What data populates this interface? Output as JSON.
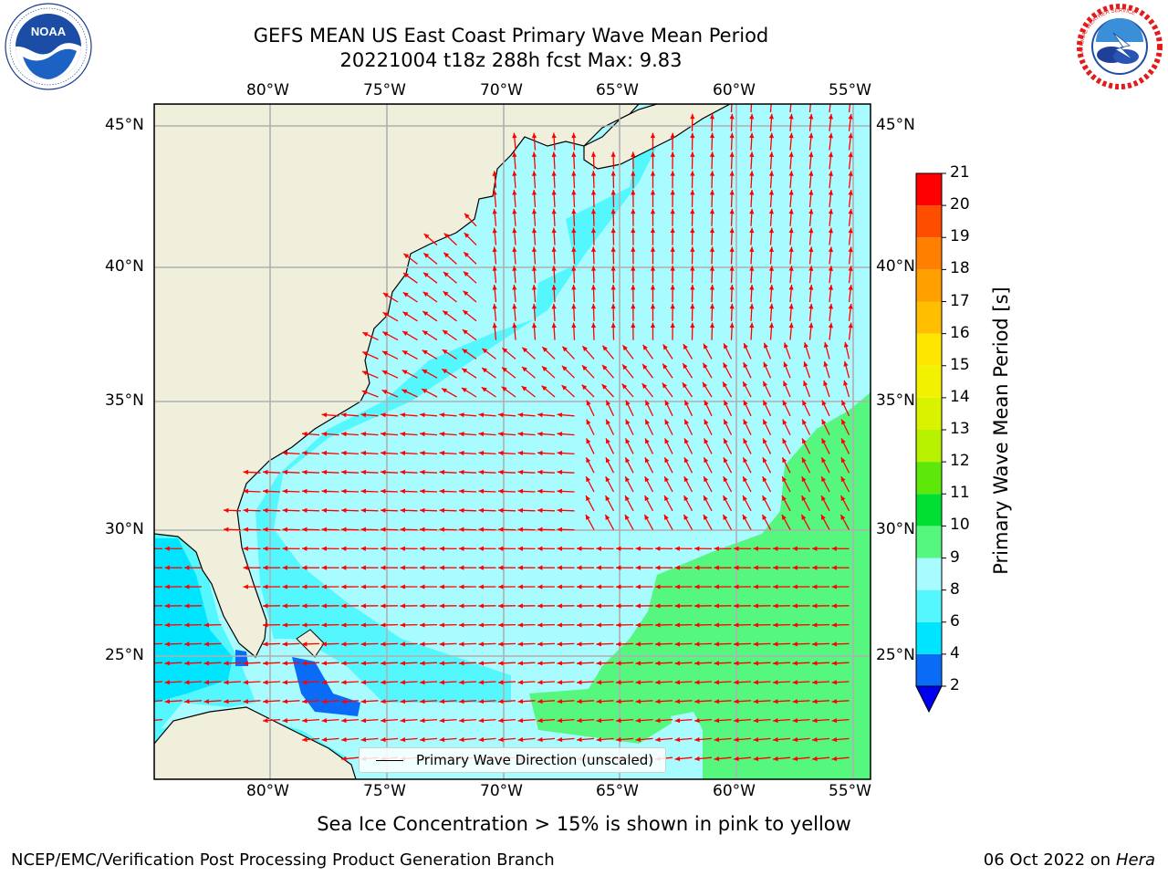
{
  "header": {
    "title_line1": "GEFS MEAN US East Coast Primary Wave Mean Period",
    "title_line2": "20221004 t18z 288h fcst   Max: 9.83"
  },
  "logos": {
    "left": "noaa-logo",
    "left_text": "NOAA",
    "right": "national-weather-service-logo",
    "right_text": "NATIONAL WEATHER SERVICE"
  },
  "map": {
    "lon_labels": [
      "80°W",
      "75°W",
      "70°W",
      "65°W",
      "60°W",
      "55°W"
    ],
    "lat_labels": [
      "45°N",
      "40°N",
      "35°N",
      "30°N",
      "25°N"
    ],
    "lon_range": [
      -85,
      -54.3
    ],
    "lat_range": [
      20.5,
      45.8
    ],
    "grid": true,
    "vector_color": "#ff0000",
    "land_color": "#efefdb",
    "coast_color": "#000000"
  },
  "colorbar": {
    "title": "Primary Wave Mean Period [s]",
    "ticks": [
      "21",
      "20",
      "19",
      "18",
      "17",
      "16",
      "15",
      "14",
      "13",
      "12",
      "11",
      "10",
      "9",
      "8",
      "6",
      "4",
      "2"
    ],
    "bands": [
      {
        "from": 2,
        "to": 4,
        "color": "#0a6cf6"
      },
      {
        "from": 4,
        "to": 6,
        "color": "#00e5ff"
      },
      {
        "from": 6,
        "to": 8,
        "color": "#55f7ff"
      },
      {
        "from": 8,
        "to": 9,
        "color": "#a8fbff"
      },
      {
        "from": 9,
        "to": 10,
        "color": "#55f77e"
      },
      {
        "from": 10,
        "to": 11,
        "color": "#00e033"
      },
      {
        "from": 11,
        "to": 12,
        "color": "#5ee80a"
      },
      {
        "from": 12,
        "to": 13,
        "color": "#b9f200"
      },
      {
        "from": 13,
        "to": 14,
        "color": "#d8f200"
      },
      {
        "from": 14,
        "to": 15,
        "color": "#f2f200"
      },
      {
        "from": 15,
        "to": 16,
        "color": "#ffe600"
      },
      {
        "from": 16,
        "to": 17,
        "color": "#ffbf00"
      },
      {
        "from": 17,
        "to": 18,
        "color": "#ff9f00"
      },
      {
        "from": 18,
        "to": 19,
        "color": "#ff7f00"
      },
      {
        "from": 19,
        "to": 20,
        "color": "#ff4d00"
      },
      {
        "from": 20,
        "to": 21,
        "color": "#ff0000"
      }
    ],
    "under_color": "#0000ee"
  },
  "legend": {
    "label": "Primary Wave Direction (unscaled)"
  },
  "footer": {
    "note": "Sea Ice Concentration > 15% is shown in pink to yellow",
    "credit": "NCEP/EMC/Verification Post Processing Product Generation Branch",
    "date": "06 Oct 2022 on",
    "machine": "Hera"
  }
}
